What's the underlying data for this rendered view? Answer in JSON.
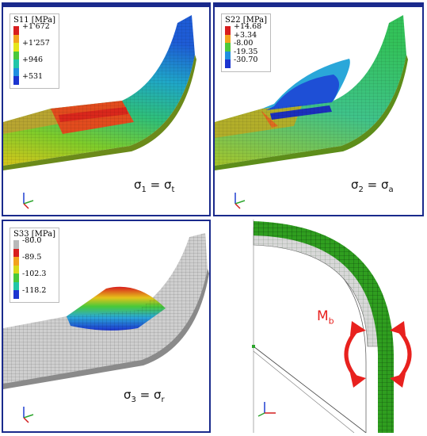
{
  "panels": [
    {
      "legend": {
        "title": "S11 [MPa]",
        "values": [
          "+1'672",
          "+1'257",
          "+946",
          "+531"
        ]
      },
      "formula": {
        "sym": "σ",
        "sub1": "1",
        "eq": " = σ",
        "sub2": "t"
      }
    },
    {
      "legend": {
        "title": "S22 [MPa]",
        "values": [
          "+14.68",
          "+3.34",
          "-8.00",
          "-19.35",
          "-30.70"
        ]
      },
      "formula": {
        "sym": "σ",
        "sub1": "2",
        "eq": " = σ",
        "sub2": "a"
      }
    },
    {
      "legend": {
        "title": "S33 [MPa]",
        "values": [
          "-80.0",
          "-89.5",
          "-102.3",
          "-118.2"
        ]
      },
      "formula": {
        "sym": "σ",
        "sub1": "3",
        "eq": " = σ",
        "sub2": "r"
      }
    }
  ],
  "moment": {
    "sym": "M",
    "sub": "b"
  },
  "colors": {
    "frame": "#1a2a8c",
    "moment_arrow": "#e8211e",
    "mesh_green": "#2f9e1f"
  }
}
